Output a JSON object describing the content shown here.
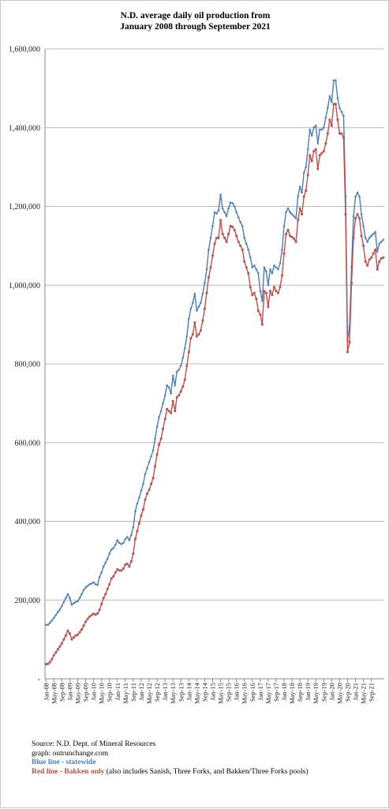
{
  "chart_data": {
    "type": "line",
    "title": "N.D. average daily oil production from",
    "subtitle": "January 2008 through September 2021",
    "ylim": [
      0,
      1600000
    ],
    "yticks": [
      "-",
      "200,000",
      "400,000",
      "600,000",
      "800,000",
      "1,000,000",
      "1,200,000",
      "1,400,000",
      "1,600,000"
    ],
    "grid": "horizontal",
    "x_start": "Jan-08",
    "xtick_labels": [
      "Jan-08",
      "May-08",
      "Sep-08",
      "Jan-09",
      "May-09",
      "Sep-09",
      "Jan-10",
      "May-10",
      "Sep-10",
      "Jan-11",
      "May-11",
      "Sep-11",
      "Jan-12",
      "May-12",
      "Sep-12",
      "Jan-13",
      "May-13",
      "Sep-13",
      "Jan-14",
      "May-14",
      "Sep-14",
      "Jan-15",
      "May-15",
      "Sep-15",
      "Jan-16",
      "May-16",
      "Sep-16",
      "Jan-17",
      "May-17",
      "Sep-17",
      "Jan-18",
      "May-18",
      "Sep-18",
      "Jan-19",
      "May-19",
      "Sep-19",
      "Jan-20",
      "May-20",
      "Sep-20",
      "Jan-21",
      "May-21",
      "Sep-21"
    ],
    "series": [
      {
        "name": "Blue line - statewide",
        "color": "#4a7ebb",
        "values": [
          137000,
          137000,
          142000,
          148000,
          155000,
          162000,
          170000,
          176000,
          185000,
          195000,
          205000,
          215000,
          205000,
          188000,
          192000,
          195000,
          197000,
          205000,
          215000,
          225000,
          232000,
          236000,
          240000,
          242000,
          245000,
          240000,
          238000,
          258000,
          270000,
          285000,
          295000,
          305000,
          318000,
          328000,
          332000,
          340000,
          352000,
          345000,
          342000,
          345000,
          355000,
          360000,
          352000,
          365000,
          385000,
          425000,
          445000,
          460000,
          478000,
          495000,
          520000,
          535000,
          550000,
          565000,
          580000,
          610000,
          640000,
          665000,
          680000,
          700000,
          720000,
          745000,
          740000,
          725000,
          770000,
          745000,
          780000,
          785000,
          795000,
          815000,
          840000,
          870000,
          915000,
          940000,
          955000,
          978000,
          935000,
          945000,
          955000,
          978000,
          1005000,
          1040000,
          1090000,
          1120000,
          1150000,
          1185000,
          1182000,
          1190000,
          1230000,
          1195000,
          1185000,
          1175000,
          1195000,
          1210000,
          1208000,
          1200000,
          1185000,
          1172000,
          1160000,
          1150000,
          1120000,
          1105000,
          1090000,
          1070000,
          1045000,
          1050000,
          1040000,
          1030000,
          985000,
          960000,
          1045000,
          1035000,
          1000000,
          1040000,
          1030000,
          1050000,
          1045000,
          1040000,
          1055000,
          1090000,
          1150000,
          1185000,
          1195000,
          1185000,
          1180000,
          1175000,
          1170000,
          1225000,
          1250000,
          1235000,
          1285000,
          1300000,
          1345000,
          1395000,
          1380000,
          1400000,
          1405000,
          1360000,
          1395000,
          1395000,
          1400000,
          1425000,
          1450000,
          1480000,
          1465000,
          1520000,
          1520000,
          1475000,
          1450000,
          1440000,
          1430000,
          1225000,
          860000,
          895000,
          1045000,
          1175000,
          1225000,
          1235000,
          1225000,
          1180000,
          1150000,
          1120000,
          1110000,
          1120000,
          1125000,
          1130000,
          1135000,
          1085000,
          1105000,
          1110000,
          1115000
        ]
      },
      {
        "name": "Red line - Bakken only",
        "color": "#c0504d",
        "values": [
          37000,
          38000,
          42000,
          50000,
          60000,
          67000,
          75000,
          82000,
          90000,
          100000,
          110000,
          122000,
          115000,
          100000,
          105000,
          110000,
          112000,
          118000,
          125000,
          135000,
          145000,
          152000,
          158000,
          162000,
          165000,
          163000,
          166000,
          175000,
          190000,
          205000,
          215000,
          228000,
          240000,
          255000,
          260000,
          270000,
          278000,
          275000,
          275000,
          280000,
          290000,
          292000,
          285000,
          298000,
          318000,
          355000,
          375000,
          395000,
          415000,
          430000,
          455000,
          470000,
          480000,
          495000,
          510000,
          540000,
          570000,
          595000,
          610000,
          635000,
          660000,
          685000,
          680000,
          675000,
          705000,
          680000,
          715000,
          720000,
          730000,
          742000,
          760000,
          795000,
          830000,
          865000,
          875000,
          905000,
          870000,
          875000,
          885000,
          910000,
          940000,
          980000,
          1020000,
          1045000,
          1075000,
          1105000,
          1120000,
          1120000,
          1165000,
          1130000,
          1120000,
          1110000,
          1130000,
          1150000,
          1148000,
          1140000,
          1125000,
          1110000,
          1100000,
          1090000,
          1060000,
          1045000,
          1030000,
          995000,
          975000,
          980000,
          965000,
          935000,
          925000,
          900000,
          985000,
          980000,
          945000,
          985000,
          975000,
          995000,
          985000,
          980000,
          995000,
          1025000,
          1080000,
          1130000,
          1140000,
          1125000,
          1122000,
          1118000,
          1110000,
          1165000,
          1195000,
          1180000,
          1225000,
          1240000,
          1280000,
          1330000,
          1315000,
          1340000,
          1345000,
          1295000,
          1330000,
          1335000,
          1340000,
          1360000,
          1385000,
          1420000,
          1405000,
          1460000,
          1460000,
          1420000,
          1385000,
          1385000,
          1375000,
          1180000,
          830000,
          855000,
          1005000,
          1120000,
          1170000,
          1180000,
          1170000,
          1125000,
          1100000,
          1060000,
          1050000,
          1065000,
          1070000,
          1080000,
          1090000,
          1040000,
          1060000,
          1068000,
          1070000
        ]
      }
    ]
  },
  "notes": {
    "source": "Source: N.D. Dept. of Mineral Resources",
    "graph": "graph: outrunchange.com",
    "blue_label": "Blue line - statewide",
    "red_label": "Red line - Bakken only",
    "red_detail": " (also includes Sanish, Three Forks, and Bakken/Three Forks pools)"
  }
}
